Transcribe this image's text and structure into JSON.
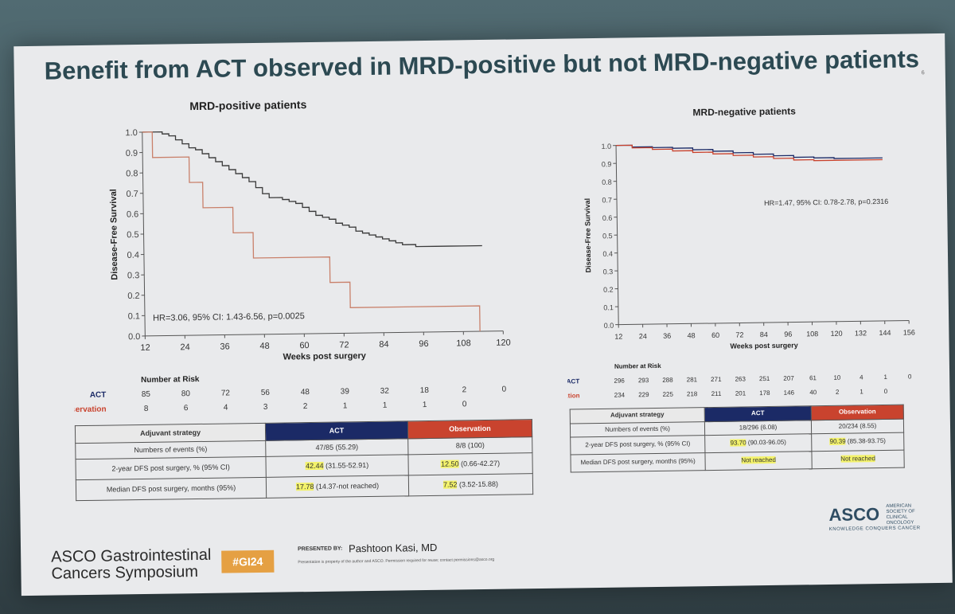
{
  "slide": {
    "title": "Benefit from ACT observed in MRD-positive but not MRD-negative patients",
    "page_number": "6"
  },
  "chart_data": [
    {
      "type": "line",
      "title": "MRD-positive patients",
      "xlabel": "Weeks post surgery",
      "ylabel": "Disease-Free Survival",
      "xlim": [
        12,
        120
      ],
      "ylim": [
        0,
        1
      ],
      "x_ticks": [
        "12",
        "24",
        "36",
        "48",
        "60",
        "72",
        "84",
        "96",
        "108",
        "120"
      ],
      "y_ticks": [
        "0.0",
        "0.1",
        "0.2",
        "0.3",
        "0.4",
        "0.5",
        "0.6",
        "0.7",
        "0.8",
        "0.9",
        "1.0"
      ],
      "annotation": "HR=3.06, 95% CI: 1.43-6.56, p=0.0025",
      "series": [
        {
          "name": "ACT",
          "color": "#3a3a3a",
          "x": [
            12,
            16,
            18,
            20,
            22,
            24,
            26,
            28,
            30,
            32,
            34,
            36,
            38,
            40,
            42,
            44,
            46,
            48,
            50,
            52,
            54,
            56,
            58,
            60,
            62,
            64,
            66,
            68,
            70,
            72,
            74,
            76,
            78,
            80,
            82,
            84,
            86,
            88,
            90,
            92,
            94,
            96,
            100,
            104,
            108,
            112,
            114
          ],
          "y": [
            1.0,
            1.0,
            0.99,
            0.98,
            0.96,
            0.94,
            0.92,
            0.91,
            0.89,
            0.87,
            0.85,
            0.83,
            0.81,
            0.79,
            0.77,
            0.75,
            0.72,
            0.69,
            0.67,
            0.67,
            0.66,
            0.65,
            0.64,
            0.62,
            0.6,
            0.58,
            0.57,
            0.56,
            0.54,
            0.53,
            0.52,
            0.5,
            0.49,
            0.48,
            0.47,
            0.46,
            0.45,
            0.44,
            0.43,
            0.43,
            0.42,
            0.42,
            0.42,
            0.42,
            0.42,
            0.42,
            0.42
          ]
        },
        {
          "name": "Observation",
          "color": "#c9806a",
          "x": [
            12,
            15,
            15,
            26,
            26,
            30,
            30,
            39,
            39,
            45,
            45,
            68,
            68,
            74,
            74,
            113,
            113
          ],
          "y": [
            1.0,
            1.0,
            0.875,
            0.875,
            0.75,
            0.75,
            0.625,
            0.625,
            0.5,
            0.5,
            0.375,
            0.375,
            0.25,
            0.25,
            0.125,
            0.125,
            0.0
          ]
        }
      ],
      "risk_table": {
        "heading": "Number at Risk",
        "rows": [
          {
            "label": "ACT",
            "values": [
              "85",
              "80",
              "72",
              "56",
              "48",
              "39",
              "32",
              "18",
              "2",
              "0"
            ]
          },
          {
            "label": "Observation",
            "values": [
              "8",
              "6",
              "4",
              "3",
              "2",
              "1",
              "1",
              "1",
              "0"
            ]
          }
        ]
      }
    },
    {
      "type": "line",
      "title": "MRD-negative patients",
      "xlabel": "Weeks post surgery",
      "ylabel": "Disease-Free Survival",
      "xlim": [
        12,
        156
      ],
      "ylim": [
        0,
        1
      ],
      "x_ticks": [
        "12",
        "24",
        "36",
        "48",
        "60",
        "72",
        "84",
        "96",
        "108",
        "120",
        "132",
        "144",
        "156"
      ],
      "y_ticks": [
        "0.0",
        "0.1",
        "0.2",
        "0.3",
        "0.4",
        "0.5",
        "0.6",
        "0.7",
        "0.8",
        "0.9",
        "1.0"
      ],
      "annotation": "HR=1.47, 95% CI: 0.78-2.78, p=0.2316",
      "series": [
        {
          "name": "ACT",
          "color": "#1b2a66",
          "x": [
            12,
            20,
            30,
            40,
            50,
            60,
            70,
            80,
            90,
            100,
            110,
            120,
            130,
            144
          ],
          "y": [
            1.0,
            0.99,
            0.985,
            0.98,
            0.97,
            0.96,
            0.95,
            0.94,
            0.93,
            0.92,
            0.915,
            0.91,
            0.91,
            0.91
          ]
        },
        {
          "name": "Observation",
          "color": "#c9432e",
          "x": [
            12,
            20,
            30,
            40,
            50,
            60,
            70,
            80,
            90,
            100,
            110,
            120,
            130,
            144
          ],
          "y": [
            1.0,
            0.985,
            0.975,
            0.965,
            0.955,
            0.945,
            0.935,
            0.925,
            0.915,
            0.905,
            0.9,
            0.9,
            0.9,
            0.9
          ]
        }
      ],
      "risk_table": {
        "heading": "Number at Risk",
        "rows": [
          {
            "label": "ACT",
            "values": [
              "296",
              "293",
              "288",
              "281",
              "271",
              "263",
              "251",
              "207",
              "61",
              "10",
              "4",
              "1",
              "0"
            ]
          },
          {
            "label": "Observation",
            "values": [
              "234",
              "229",
              "225",
              "218",
              "211",
              "201",
              "178",
              "146",
              "40",
              "2",
              "1",
              "0"
            ]
          }
        ]
      }
    }
  ],
  "table_pos": {
    "header": {
      "strategy": "Adjuvant strategy",
      "act": "ACT",
      "obs": "Observation"
    },
    "rows": [
      {
        "label": "Numbers of events (%)",
        "act": "47/85 (55.29)",
        "obs": "8/8 (100)"
      },
      {
        "label": "2-year DFS post surgery, % (95% CI)",
        "act_hl": "42.44",
        "act_rest": "(31.55-52.91)",
        "obs_hl": "12.50",
        "obs_rest": "(0.66-42.27)"
      },
      {
        "label": "Median DFS post surgery, months (95%)",
        "act_hl": "17.78",
        "act_rest": "(14.37-not reached)",
        "obs_hl": "7.52",
        "obs_rest": "(3.52-15.88)"
      }
    ]
  },
  "table_neg": {
    "header": {
      "strategy": "Adjuvant strategy",
      "act": "ACT",
      "obs": "Observation"
    },
    "rows": [
      {
        "label": "Numbers of events (%)",
        "act": "18/296 (6.08)",
        "obs": "20/234 (8.55)"
      },
      {
        "label": "2-year DFS post surgery, % (95% CI)",
        "act_hl": "93.70",
        "act_rest": "(90.03-96.05)",
        "obs_hl": "90.39",
        "obs_rest": "(85.38-93.75)"
      },
      {
        "label": "Median DFS post surgery, months (95%)",
        "act_hl": "Not reached",
        "act_rest": "",
        "obs_hl": "Not reached",
        "obs_rest": ""
      }
    ]
  },
  "footer": {
    "logo_line1": "ASCO Gastrointestinal",
    "logo_line2": "Cancers Symposium",
    "hashtag": "#GI24",
    "presented_by": "PRESENTED BY:",
    "presenter": "Pashtoon Kasi, MD",
    "disclaimer": "Presentation is property of the author and ASCO. Permission required for reuse; contact permissions@asco.org",
    "asco_logo": "ASCO",
    "asco_small": "AMERICAN SOCIETY OF CLINICAL ONCOLOGY",
    "asco_tagline": "KNOWLEDGE CONQUERS CANCER"
  },
  "colors": {
    "act": "#1b2a66",
    "observation": "#c9432e",
    "title": "#2c4952",
    "hashtag": "#e5a043"
  }
}
